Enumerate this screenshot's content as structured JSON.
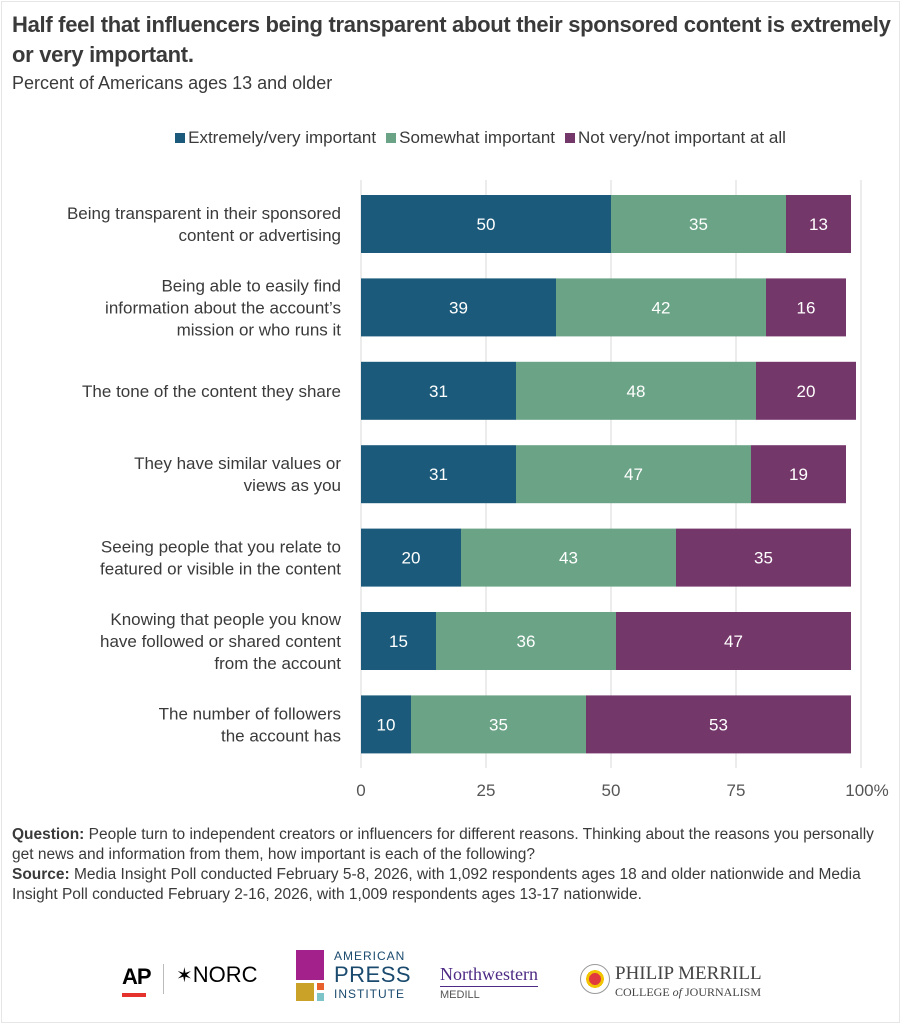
{
  "chart_data": {
    "type": "bar",
    "orientation": "horizontal",
    "stacked": true,
    "title": "Half feel that influencers being transparent about their sponsored content is extremely or very important.",
    "subtitle": "Percent of Americans ages 13 and older",
    "categories": [
      [
        "Being transparent in their sponsored",
        "content or advertising"
      ],
      [
        "Being able to easily find",
        "information about the account’s",
        "mission or who runs it"
      ],
      [
        "The tone of the content they share"
      ],
      [
        "They have similar values or",
        "views as you"
      ],
      [
        "Seeing people that you relate to",
        "featured or visible in the content"
      ],
      [
        "Knowing that people you know",
        "have followed or shared content",
        "from the account"
      ],
      [
        "The number of followers",
        "the account has"
      ]
    ],
    "series": [
      {
        "name": "Extremely/very important",
        "color": "#1b5a7a",
        "values": [
          50,
          39,
          31,
          31,
          20,
          15,
          10
        ]
      },
      {
        "name": "Somewhat important",
        "color": "#6ba386",
        "values": [
          35,
          42,
          48,
          47,
          43,
          36,
          35
        ]
      },
      {
        "name": "Not very/not important at all",
        "color": "#74376a",
        "values": [
          13,
          16,
          20,
          19,
          35,
          47,
          53
        ]
      }
    ],
    "xlim": [
      0,
      100
    ],
    "xticks": [
      "0",
      "25",
      "50",
      "75",
      "100%"
    ],
    "xtick_values": [
      0,
      25,
      50,
      75,
      100
    ],
    "grid": true,
    "legend_position": "top"
  },
  "footer": {
    "question_label": "Question:",
    "question_text": " People turn to independent creators or influencers for different reasons. Thinking about the reasons you personally get news and information from them, how important is each of the following?",
    "source_label": "Source:",
    "source_text": " Media Insight Poll conducted February 5-8, 2026, with 1,092 respondents ages 18 and older nationwide and Media Insight Poll conducted February 2-16, 2026, with 1,009 respondents ages 13-17 nationwide."
  },
  "logos": {
    "ap": "AP",
    "norc": "NORC",
    "api_line1": "AMERICAN",
    "api_line2": "PRESS",
    "api_line3": "INSTITUTE",
    "nw_line1": "Northwestern",
    "nw_line2": "MEDILL",
    "pm_line1": "PHILIP MERRILL",
    "pm_line2_a": "COLLEGE ",
    "pm_line2_b": "of",
    "pm_line2_c": " JOURNALISM"
  }
}
